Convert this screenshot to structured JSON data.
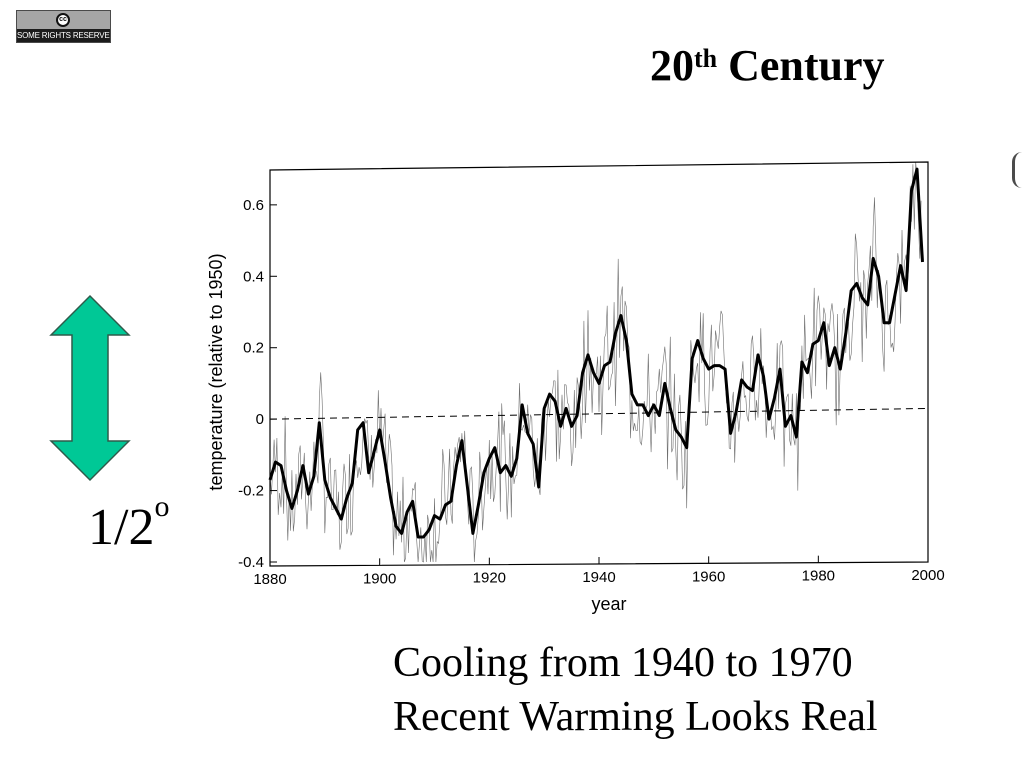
{
  "badge": {
    "symbol": "cc",
    "text": "SOME RIGHTS RESERVED"
  },
  "title": {
    "main": "20",
    "superscript": "th",
    "rest": " Century"
  },
  "scale": {
    "label": "1/2",
    "superscript": "o",
    "arrow_color": "#00c896",
    "arrow_icon": "double-headed-vertical-arrow"
  },
  "caption": {
    "line1": "Cooling from 1940 to 1970",
    "line2": "Recent Warming Looks Real"
  },
  "chart_data": {
    "type": "line",
    "xlabel": "year",
    "ylabel": "temperature (relative to 1950)",
    "xlim": [
      1880,
      2000
    ],
    "ylim": [
      -0.4,
      0.72
    ],
    "xticks": [
      1880,
      1900,
      1920,
      1940,
      1960,
      1980,
      2000
    ],
    "yticks": [
      -0.4,
      -0.2,
      0,
      0.2,
      0.4,
      0.6
    ],
    "ytick_labels": [
      "-0.4",
      "-0.2",
      "0",
      "0.2",
      "0.4",
      "0.6"
    ],
    "grid": false,
    "legend": false,
    "colors": {
      "line": "#000000",
      "noise": "#555555"
    },
    "series": [
      {
        "style": "thick-smoothed",
        "x": [
          1880,
          1881,
          1882,
          1883,
          1884,
          1885,
          1886,
          1887,
          1888,
          1889,
          1890,
          1891,
          1892,
          1893,
          1894,
          1895,
          1896,
          1897,
          1898,
          1899,
          1900,
          1901,
          1902,
          1903,
          1904,
          1905,
          1906,
          1907,
          1908,
          1909,
          1910,
          1911,
          1912,
          1913,
          1914,
          1915,
          1916,
          1917,
          1918,
          1919,
          1920,
          1921,
          1922,
          1923,
          1924,
          1925,
          1926,
          1927,
          1928,
          1929,
          1930,
          1931,
          1932,
          1933,
          1934,
          1935,
          1936,
          1937,
          1938,
          1939,
          1940,
          1941,
          1942,
          1943,
          1944,
          1945,
          1946,
          1947,
          1948,
          1949,
          1950,
          1951,
          1952,
          1953,
          1954,
          1955,
          1956,
          1957,
          1958,
          1959,
          1960,
          1961,
          1962,
          1963,
          1964,
          1965,
          1966,
          1967,
          1968,
          1969,
          1970,
          1971,
          1972,
          1973,
          1974,
          1975,
          1976,
          1977,
          1978,
          1979,
          1980,
          1981,
          1982,
          1983,
          1984,
          1985,
          1986,
          1987,
          1988,
          1989,
          1990,
          1991,
          1992,
          1993,
          1994,
          1995,
          1996,
          1997,
          1998,
          1999
        ],
        "y": [
          -0.17,
          -0.12,
          -0.13,
          -0.2,
          -0.25,
          -0.2,
          -0.13,
          -0.21,
          -0.16,
          -0.01,
          -0.17,
          -0.22,
          -0.25,
          -0.28,
          -0.22,
          -0.18,
          -0.03,
          -0.01,
          -0.15,
          -0.09,
          -0.03,
          -0.12,
          -0.22,
          -0.3,
          -0.32,
          -0.26,
          -0.23,
          -0.33,
          -0.33,
          -0.31,
          -0.27,
          -0.28,
          -0.24,
          -0.23,
          -0.13,
          -0.06,
          -0.19,
          -0.32,
          -0.24,
          -0.15,
          -0.11,
          -0.08,
          -0.15,
          -0.13,
          -0.16,
          -0.11,
          0.04,
          -0.04,
          -0.07,
          -0.19,
          0.03,
          0.07,
          0.05,
          -0.02,
          0.03,
          -0.02,
          0.01,
          0.13,
          0.18,
          0.13,
          0.1,
          0.15,
          0.16,
          0.24,
          0.29,
          0.22,
          0.07,
          0.04,
          0.04,
          0.01,
          0.04,
          0.01,
          0.1,
          0.03,
          -0.03,
          -0.05,
          -0.08,
          0.17,
          0.22,
          0.17,
          0.14,
          0.15,
          0.15,
          0.14,
          -0.04,
          0.02,
          0.11,
          0.09,
          0.08,
          0.18,
          0.12,
          0.0,
          0.06,
          0.14,
          -0.02,
          0.01,
          -0.05,
          0.16,
          0.13,
          0.21,
          0.22,
          0.27,
          0.15,
          0.2,
          0.14,
          0.24,
          0.36,
          0.38,
          0.34,
          0.32,
          0.45,
          0.4,
          0.27,
          0.27,
          0.35,
          0.43,
          0.36,
          0.64,
          0.7,
          0.44
        ]
      },
      {
        "style": "dashed-reference",
        "x": [
          1880,
          2000
        ],
        "y": [
          0.0,
          0.03
        ]
      }
    ]
  }
}
